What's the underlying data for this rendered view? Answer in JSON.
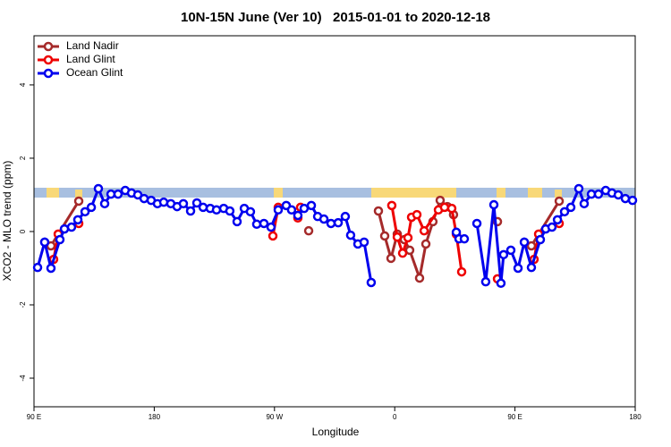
{
  "chart_data": {
    "type": "line",
    "title": "10N-15N June (Ver 10)   2015-01-01 to 2020-12-18",
    "xlabel": "Longitude",
    "ylabel": "XCO2 - MLO trend (ppm)",
    "xlim": [
      90,
      540
    ],
    "ylim": [
      -4.78,
      5.34
    ],
    "xticks": [
      {
        "value": 90,
        "label": "90 E"
      },
      180,
      {
        "value": 270,
        "label": "90 W"
      },
      {
        "value": 360,
        "label": "0"
      },
      {
        "value": 450,
        "label": "90 E"
      },
      {
        "value": 540,
        "label": "180"
      }
    ],
    "yticks": [
      -4,
      -2,
      0,
      2,
      4
    ],
    "legend": "top-left",
    "series": [
      {
        "name": "Land Nadir",
        "color": "#a52a2a",
        "x": [
          102.7,
          123.5,
          null,
          295.6,
          null,
          347.8,
          352.5,
          357.2,
          361.9,
          367.2,
          371.2,
          378.6,
          383.3,
          388.6,
          394.0,
          399.4,
          404.0,
          null,
          436.9,
          null,
          462.3,
          483.1
        ],
        "values": [
          -0.39,
          0.83,
          null,
          0.02,
          null,
          0.56,
          -0.12,
          -0.73,
          -0.07,
          -0.22,
          -0.51,
          -1.27,
          -0.34,
          0.27,
          0.85,
          0.68,
          0.46,
          null,
          0.27,
          null,
          -0.39,
          0.83
        ]
      },
      {
        "name": "Land Glint",
        "color": "#ee0000",
        "x": [
          104.7,
          108.1,
          123.5,
          null,
          268.8,
          272.8,
          null,
          287.5,
          289.5,
          null,
          357.8,
          361.9,
          365.9,
          369.9,
          372.6,
          376.6,
          382.0,
          392.7,
          397.3,
          402.7,
          406.1,
          410.1,
          null,
          436.9,
          null,
          464.3,
          467.7,
          483.1
        ],
        "values": [
          -0.76,
          -0.07,
          0.22,
          null,
          -0.12,
          0.66,
          null,
          0.37,
          0.66,
          null,
          0.71,
          -0.15,
          -0.59,
          -0.17,
          0.39,
          0.46,
          0.02,
          0.59,
          0.66,
          0.63,
          -0.07,
          -1.1,
          null,
          -1.29,
          null,
          -0.76,
          -0.07,
          0.22
        ]
      },
      {
        "name": "Ocean Glint",
        "color": "#0000ee",
        "x": [
          92.7,
          98.0,
          102.7,
          109.4,
          112.8,
          118.1,
          122.8,
          128.2,
          132.9,
          138.2,
          142.9,
          147.6,
          152.9,
          158.3,
          163.0,
          167.7,
          172.4,
          177.7,
          182.4,
          187.1,
          192.4,
          197.1,
          201.8,
          207.2,
          211.9,
          216.6,
          221.9,
          226.6,
          232.0,
          236.6,
          242.0,
          247.4,
          252.0,
          256.7,
          262.1,
          267.4,
          272.8,
          278.8,
          282.8,
          287.5,
          292.2,
          297.6,
          302.3,
          307.0,
          312.3,
          317.7,
          323.0,
          327.0,
          332.4,
          337.1,
          342.4,
          null,
          406.1,
          408.1,
          412.1,
          null,
          421.5,
          428.1,
          434.2,
          439.5,
          441.5,
          446.9,
          452.3,
          457.0,
          462.3,
          469.0,
          473.0,
          477.7,
          481.8,
          487.1,
          491.8,
          497.8,
          501.8,
          507.2,
          512.5,
          517.9,
          522.6,
          527.3,
          532.6,
          538.0
        ],
        "values": [
          -0.98,
          -0.29,
          -1.0,
          -0.22,
          0.07,
          0.12,
          0.32,
          0.54,
          0.66,
          1.17,
          0.76,
          1.02,
          1.02,
          1.12,
          1.05,
          1.0,
          0.9,
          0.85,
          0.76,
          0.8,
          0.76,
          0.68,
          0.76,
          0.56,
          0.78,
          0.66,
          0.63,
          0.59,
          0.63,
          0.56,
          0.27,
          0.63,
          0.54,
          0.2,
          0.22,
          0.12,
          0.59,
          0.71,
          0.59,
          0.44,
          0.63,
          0.71,
          0.41,
          0.34,
          0.22,
          0.24,
          0.41,
          -0.1,
          -0.34,
          -0.29,
          -1.39,
          null,
          -0.02,
          -0.2,
          -0.2,
          null,
          0.22,
          -1.37,
          0.73,
          -1.41,
          -0.63,
          -0.51,
          -1.0,
          -0.29,
          -0.98,
          -0.22,
          0.07,
          0.12,
          0.32,
          0.54,
          0.66,
          1.17,
          0.76,
          1.02,
          1.02,
          1.12,
          1.05,
          1.0,
          0.9,
          0.85
        ]
      }
    ]
  }
}
